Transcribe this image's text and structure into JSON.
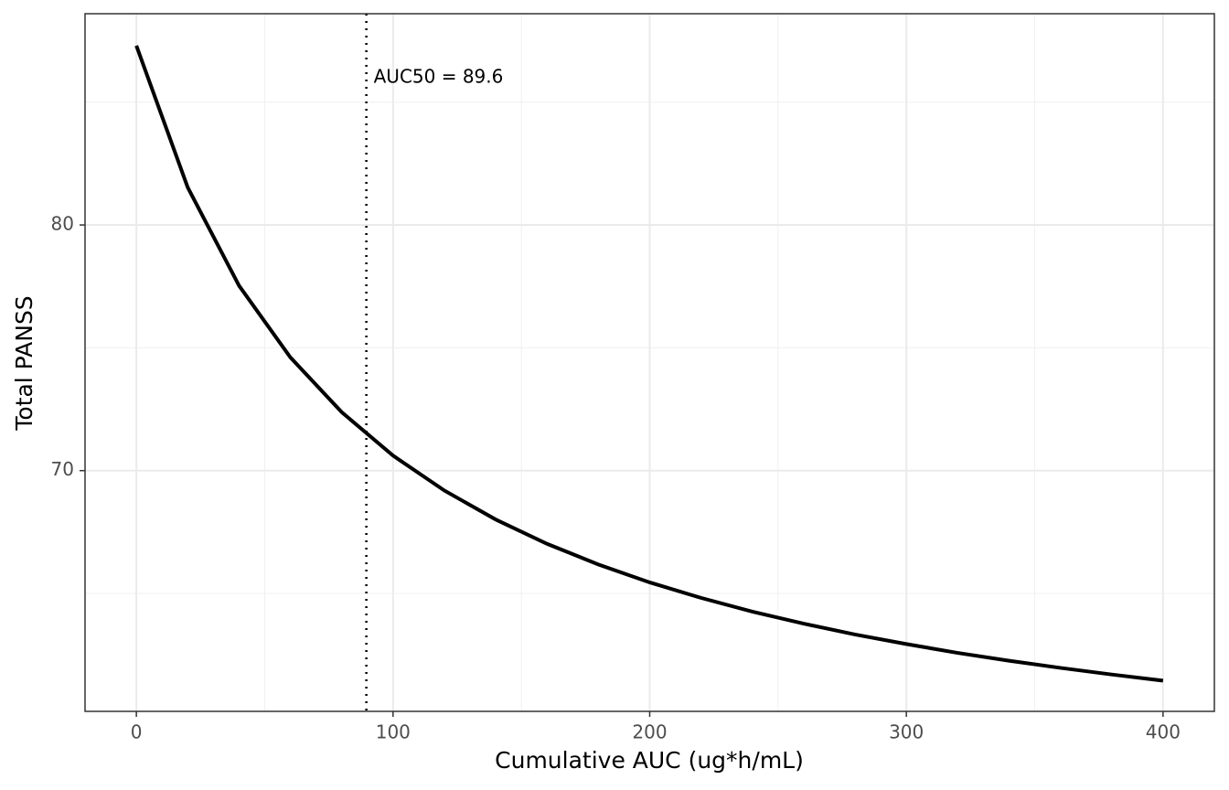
{
  "chart_data": {
    "type": "line",
    "x_label": "Cumulative AUC (ug*h/mL)",
    "y_label": "Total PANSS",
    "x": [
      0,
      20,
      40,
      60,
      80,
      100,
      120,
      140,
      160,
      180,
      200,
      220,
      240,
      260,
      280,
      300,
      320,
      340,
      360,
      380,
      400
    ],
    "series": [
      {
        "color": "#000000",
        "values": [
          87.3,
          81.53,
          77.53,
          74.61,
          72.38,
          70.61,
          69.19,
          68.01,
          67.02,
          66.18,
          65.45,
          64.82,
          64.26,
          63.77,
          63.33,
          62.94,
          62.58,
          62.26,
          61.97,
          61.7,
          61.45
        ]
      }
    ],
    "vline": {
      "x": 89.6,
      "label": "AUC50 = 89.6"
    },
    "xlim": [
      -20,
      420
    ],
    "xticks": [
      0,
      100,
      200,
      300,
      400
    ],
    "x_minor_ticks": [
      50,
      150,
      250,
      350
    ],
    "ylim": [
      60.2,
      88.6
    ],
    "yticks": [
      70,
      80
    ],
    "y_minor_ticks": [
      65,
      75,
      85
    ],
    "grid": true
  }
}
